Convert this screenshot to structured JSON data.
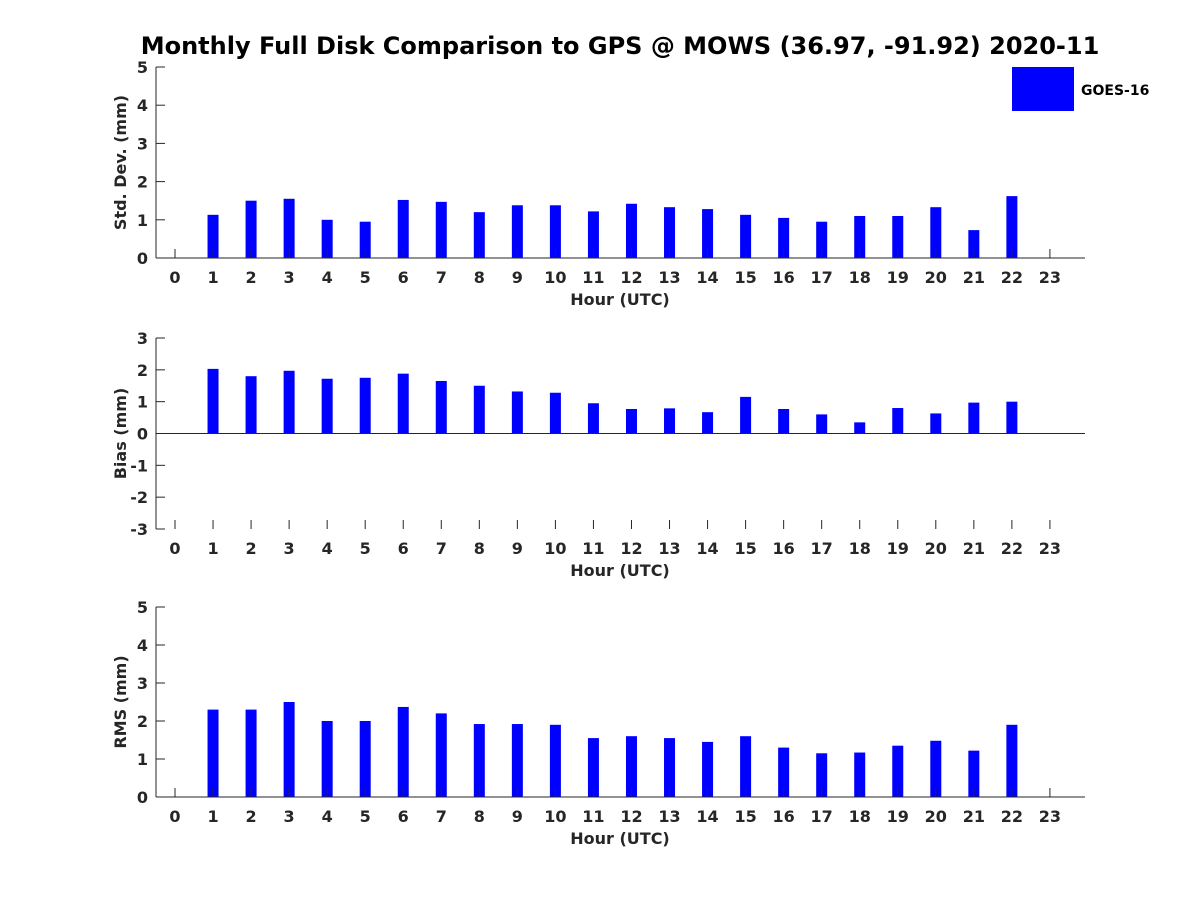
{
  "title": "Monthly Full Disk Comparison to GPS @ MOWS (36.97, -91.92) 2020-11",
  "legend": {
    "label": "GOES-16",
    "color": "#0000ff",
    "placement": "top-right"
  },
  "chart_data": [
    {
      "type": "bar",
      "x": [
        0,
        1,
        2,
        3,
        4,
        5,
        6,
        7,
        8,
        9,
        10,
        11,
        12,
        13,
        14,
        15,
        16,
        17,
        18,
        19,
        20,
        21,
        22,
        23
      ],
      "values": [
        null,
        1.13,
        1.5,
        1.55,
        1.0,
        0.95,
        1.52,
        1.47,
        1.2,
        1.38,
        1.38,
        1.22,
        1.42,
        1.33,
        1.28,
        1.13,
        1.05,
        0.95,
        1.1,
        1.1,
        1.33,
        0.73,
        1.62,
        null
      ],
      "xlabel": "Hour (UTC)",
      "ylabel": "Std. Dev. (mm)",
      "ylim": [
        0,
        5
      ],
      "yticks": [
        0,
        1,
        2,
        3,
        4,
        5
      ],
      "grid": false
    },
    {
      "type": "bar",
      "x": [
        0,
        1,
        2,
        3,
        4,
        5,
        6,
        7,
        8,
        9,
        10,
        11,
        12,
        13,
        14,
        15,
        16,
        17,
        18,
        19,
        20,
        21,
        22,
        23
      ],
      "values": [
        null,
        2.03,
        1.8,
        1.97,
        1.72,
        1.75,
        1.88,
        1.65,
        1.5,
        1.32,
        1.28,
        0.95,
        0.77,
        0.79,
        0.67,
        1.15,
        0.77,
        0.6,
        0.35,
        0.8,
        0.63,
        0.97,
        1.0,
        null
      ],
      "xlabel": "Hour (UTC)",
      "ylabel": "Bias (mm)",
      "ylim": [
        -3,
        3
      ],
      "yticks": [
        -3,
        -2,
        -1,
        0,
        1,
        2,
        3
      ],
      "grid": false
    },
    {
      "type": "bar",
      "x": [
        0,
        1,
        2,
        3,
        4,
        5,
        6,
        7,
        8,
        9,
        10,
        11,
        12,
        13,
        14,
        15,
        16,
        17,
        18,
        19,
        20,
        21,
        22,
        23
      ],
      "values": [
        null,
        2.3,
        2.3,
        2.5,
        2.0,
        2.0,
        2.37,
        2.2,
        1.92,
        1.92,
        1.9,
        1.55,
        1.6,
        1.55,
        1.45,
        1.6,
        1.3,
        1.15,
        1.17,
        1.35,
        1.48,
        1.22,
        1.9,
        null
      ],
      "xlabel": "Hour (UTC)",
      "ylabel": "RMS (mm)",
      "ylim": [
        0,
        5
      ],
      "yticks": [
        0,
        1,
        2,
        3,
        4,
        5
      ],
      "grid": false
    }
  ]
}
